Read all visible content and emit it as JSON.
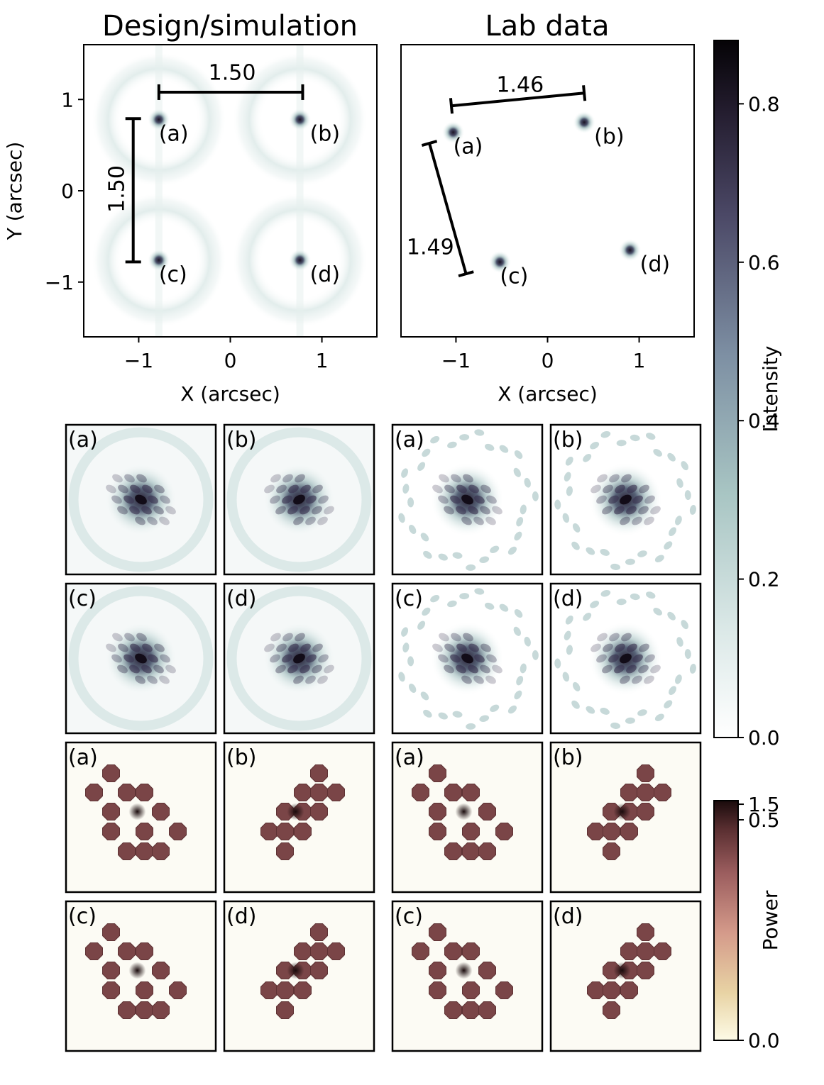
{
  "figure": {
    "title_left": "Design/simulation",
    "title_right": "Lab data",
    "panel_letters": [
      "(a)",
      "(b)",
      "(c)",
      "(d)"
    ]
  },
  "chart_data": [
    {
      "type": "scatter",
      "name": "design-simulation-overview",
      "title": "Design/simulation",
      "xlabel": "X (arcsec)",
      "ylabel": "Y (arcsec)",
      "xlim": [
        -1.6,
        1.6
      ],
      "ylim": [
        -1.6,
        1.6
      ],
      "xticks": [
        -1,
        0,
        1
      ],
      "yticks": [
        -1,
        0,
        1
      ],
      "xtick_labels": [
        "−1",
        "0",
        "1"
      ],
      "ytick_labels": [
        "−1",
        "0",
        "1"
      ],
      "points": [
        {
          "label": "(a)",
          "x": -0.78,
          "y": 0.78
        },
        {
          "label": "(b)",
          "x": 0.76,
          "y": 0.78
        },
        {
          "label": "(c)",
          "x": -0.78,
          "y": -0.76
        },
        {
          "label": "(d)",
          "x": 0.76,
          "y": -0.76
        }
      ],
      "separations": [
        {
          "label": "1.50",
          "from": [
            -0.78,
            1.08
          ],
          "to": [
            0.79,
            1.08
          ],
          "label_pos": [
            0.02,
            1.28
          ]
        },
        {
          "label": "1.50",
          "from": [
            -1.06,
            0.79
          ],
          "to": [
            -1.06,
            -0.78
          ],
          "label_pos": [
            -1.23,
            0.02
          ],
          "rotate": -90
        }
      ]
    },
    {
      "type": "scatter",
      "name": "lab-data-overview",
      "title": "Lab data",
      "xlabel": "X (arcsec)",
      "ylabel": "",
      "xlim": [
        -1.6,
        1.6
      ],
      "ylim": [
        -1.6,
        1.6
      ],
      "xticks": [
        -1,
        0,
        1
      ],
      "xtick_labels": [
        "−1",
        "0",
        "1"
      ],
      "points": [
        {
          "label": "(a)",
          "x": -1.03,
          "y": 0.64
        },
        {
          "label": "(b)",
          "x": 0.4,
          "y": 0.75
        },
        {
          "label": "(c)",
          "x": -0.52,
          "y": -0.78
        },
        {
          "label": "(d)",
          "x": 0.9,
          "y": -0.65
        }
      ],
      "separations": [
        {
          "label": "1.46",
          "from": [
            -1.05,
            0.93
          ],
          "to": [
            0.4,
            1.07
          ],
          "label_pos": [
            -0.3,
            1.15
          ]
        },
        {
          "label": "1.49",
          "from": [
            -1.29,
            0.52
          ],
          "to": [
            -0.89,
            -0.91
          ],
          "label_pos": [
            -1.28,
            -0.63
          ]
        }
      ]
    },
    {
      "type": "heatmap",
      "name": "intensity-colorbar",
      "label": "Intensity",
      "range": [
        0.0,
        0.88
      ],
      "ticks": [
        0.0,
        0.2,
        0.4,
        0.6,
        0.8
      ],
      "tick_labels": [
        "0.0",
        "0.2",
        "0.4",
        "0.6",
        "0.8"
      ]
    },
    {
      "type": "heatmap",
      "name": "power-colorbar",
      "label": "Power",
      "range": [
        0.0,
        1.5
      ],
      "ticks": [
        0.0,
        0.5,
        1.5
      ],
      "tick_labels": [
        "0.0",
        "0.5",
        "1.5"
      ],
      "tick_positions_fraction": [
        0.0,
        0.92,
        0.985
      ]
    }
  ]
}
